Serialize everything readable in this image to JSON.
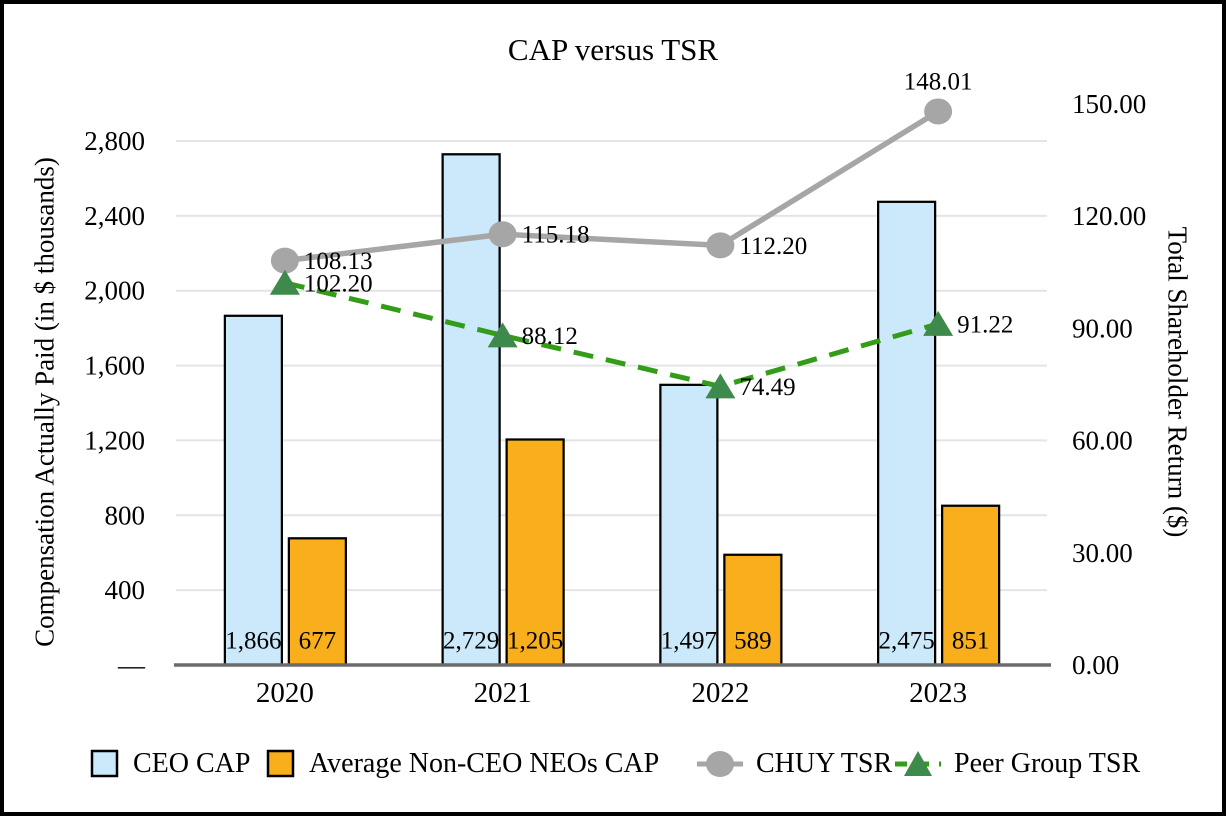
{
  "title": "CAP versus TSR",
  "colors": {
    "ceo_bar": "#CBE9FA",
    "neo_bar": "#F9AE1B",
    "bar_border": "#000000",
    "chuy_line": "#A6A6A6",
    "peer_line": "#339C18",
    "peer_marker": "#3E8A4C",
    "gridline": "#E4E4E4",
    "axis_line": "#6B6B6B"
  },
  "legend": {
    "items": [
      {
        "label": "CEO CAP",
        "swatch": "light-blue-square"
      },
      {
        "label": "Average Non-CEO NEOs CAP",
        "swatch": "orange-square"
      },
      {
        "label": "CHUY TSR",
        "swatch": "gray-line-with-circle"
      },
      {
        "label": "Peer Group TSR",
        "swatch": "green-dashed-line-with-triangle"
      }
    ]
  },
  "chart_data": {
    "type": "bar+line combo",
    "title": "CAP versus TSR",
    "categories": [
      "2020",
      "2021",
      "2022",
      "2023"
    ],
    "bar_series": [
      {
        "name": "CEO CAP",
        "axis": "left",
        "color_key": "ceo_bar",
        "values": [
          1866,
          2729,
          1497,
          2475
        ],
        "labels": [
          "1,866",
          "2,729",
          "1,497",
          "2,475"
        ]
      },
      {
        "name": "Average Non-CEO NEOs CAP",
        "axis": "left",
        "color_key": "neo_bar",
        "values": [
          677,
          1205,
          589,
          851
        ],
        "labels": [
          "677",
          "1,205",
          "589",
          "851"
        ]
      }
    ],
    "line_series": [
      {
        "name": "CHUY TSR",
        "axis": "right",
        "color_key": "chuy_line",
        "marker": "circle",
        "dash": "solid",
        "values": [
          108.13,
          115.18,
          112.2,
          148.01
        ],
        "labels": [
          "108.13",
          "115.18",
          "112.20",
          "148.01"
        ],
        "label_pos": [
          "right",
          "right",
          "right",
          "above"
        ]
      },
      {
        "name": "Peer Group TSR",
        "axis": "right",
        "color_key": "peer_line",
        "marker_color_key": "peer_marker",
        "marker": "triangle",
        "dash": "dashed",
        "values": [
          102.2,
          88.12,
          74.49,
          91.22
        ],
        "labels": [
          "102.20",
          "88.12",
          "74.49",
          "91.22"
        ],
        "label_pos": [
          "right",
          "right",
          "right",
          "right"
        ]
      }
    ],
    "left_axis": {
      "title": "Compensation Actually Paid (in $ thousands)",
      "min": 0,
      "max": 2800,
      "tick_step": 400,
      "tick_labels": [
        "—",
        "400",
        "800",
        "1,200",
        "1,600",
        "2,000",
        "2,400",
        "2,800"
      ]
    },
    "right_axis": {
      "title": "Total Shareholder Return ($)",
      "min": 0,
      "max": 150,
      "tick_step": 30,
      "tick_labels": [
        "0.00",
        "30.00",
        "60.00",
        "90.00",
        "120.00",
        "150.00"
      ]
    },
    "gridlines": "horizontal-at-left-axis-ticks",
    "legend_position": "bottom"
  }
}
